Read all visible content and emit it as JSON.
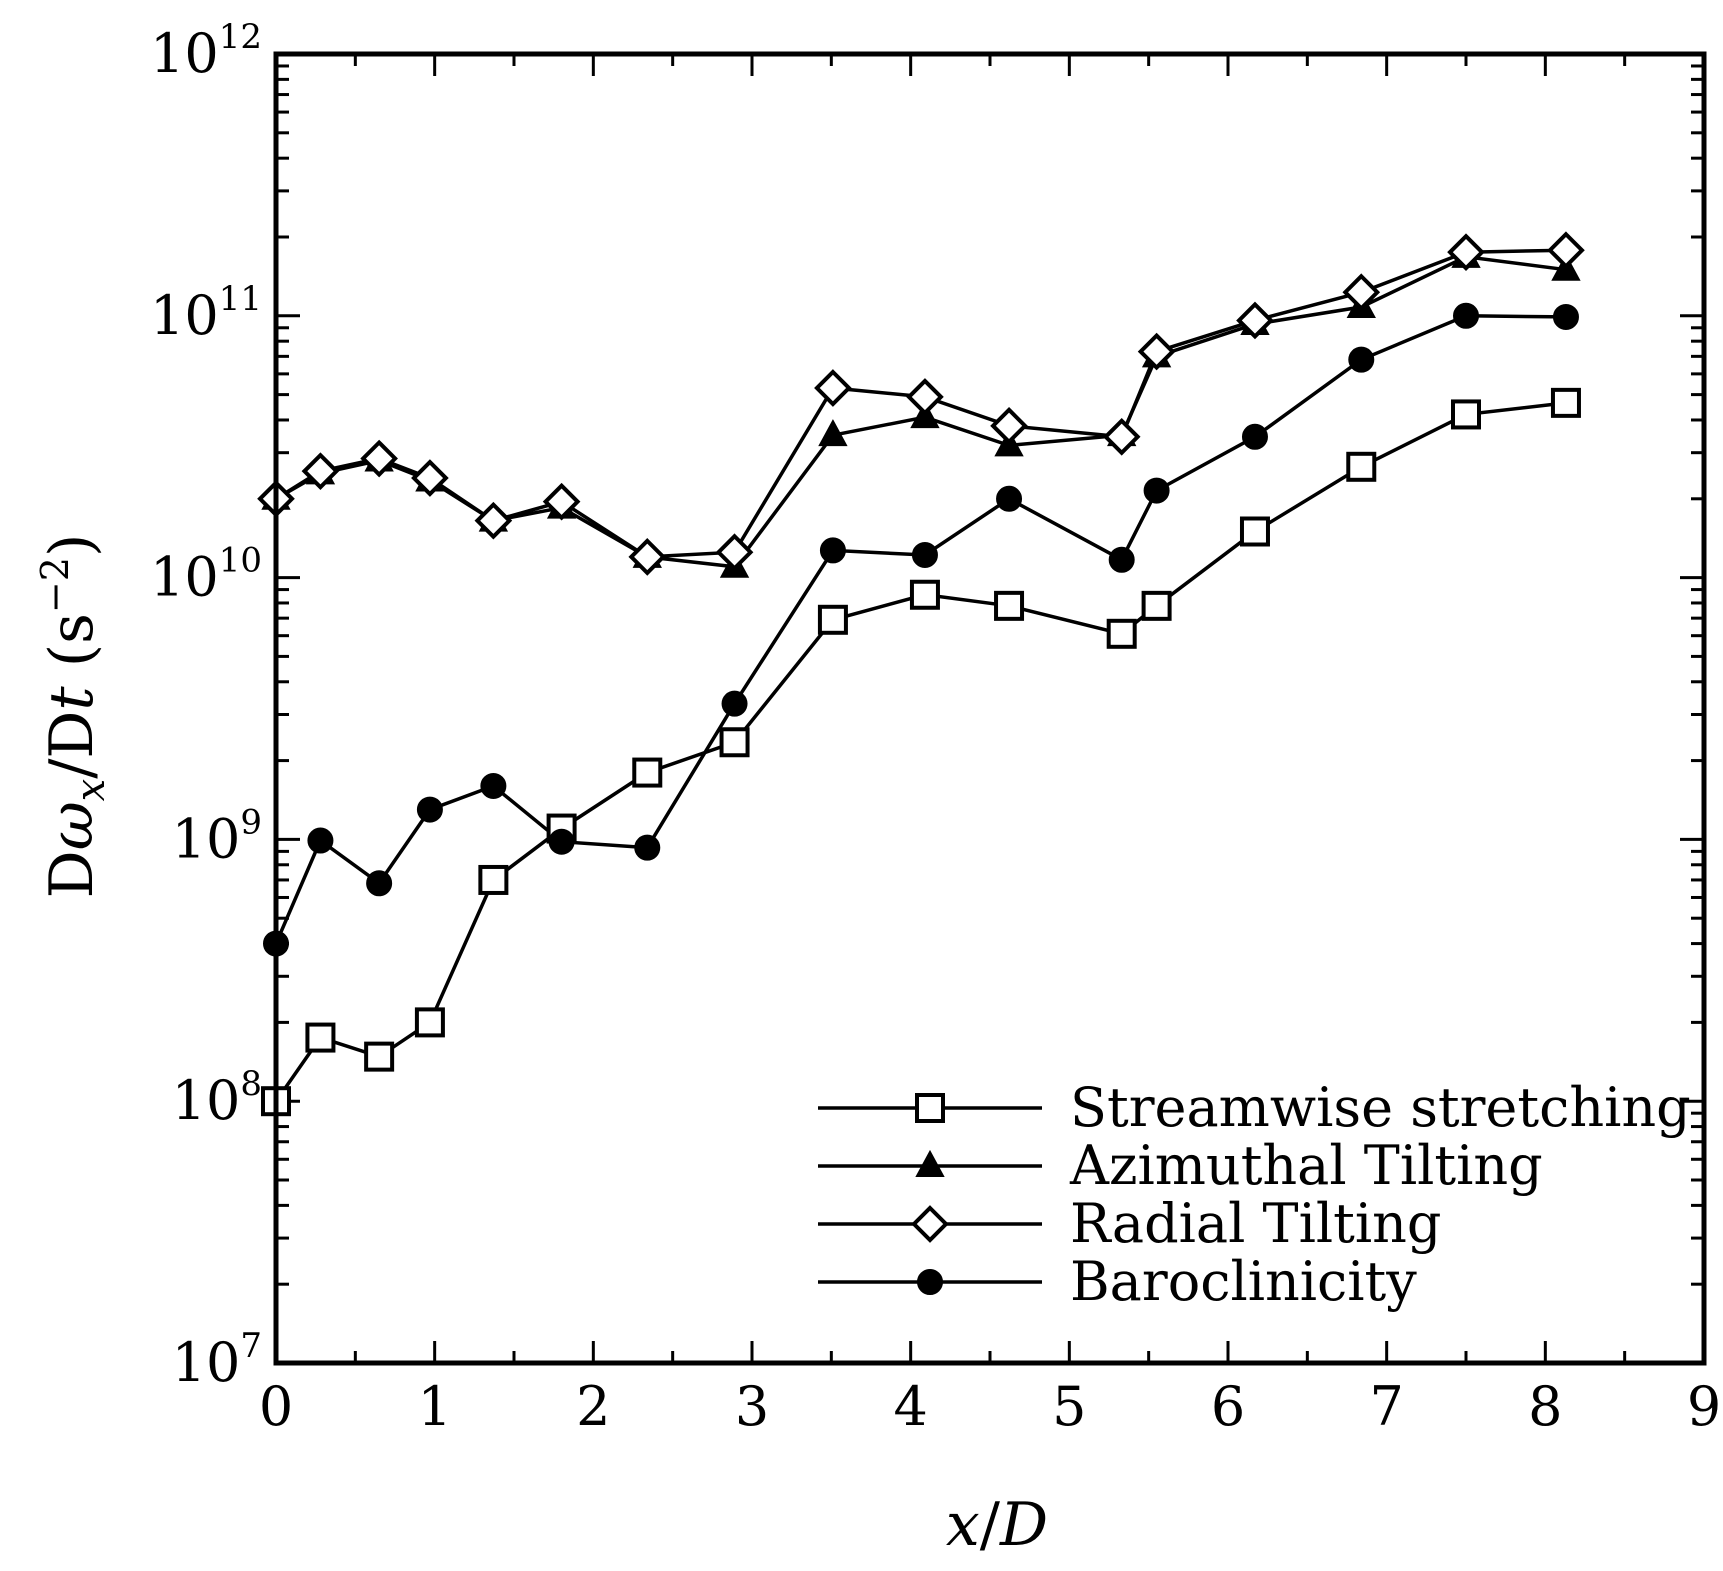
{
  "chart_data": {
    "type": "line",
    "title": "",
    "xlabel": {
      "italic_var": "x",
      "sep": "/",
      "italic_den": "D"
    },
    "ylabel": {
      "prefix": "D",
      "omega": "ω",
      "sub": "x",
      "mid": "/D",
      "t": "t",
      "unit_open": " (s",
      "unit_sup": "−2",
      "unit_close": ")"
    },
    "xlim": [
      0,
      9
    ],
    "ylim": [
      10000000.0,
      1000000000000.0
    ],
    "yscale": "log",
    "grid": false,
    "legend_position": "bottom-right",
    "x_ticks": [
      "0",
      "1",
      "2",
      "3",
      "4",
      "5",
      "6",
      "7",
      "8",
      "9"
    ],
    "y_ticks": [
      {
        "base": "10",
        "exp": "7"
      },
      {
        "base": "10",
        "exp": "8"
      },
      {
        "base": "10",
        "exp": "9"
      },
      {
        "base": "10",
        "exp": "10"
      },
      {
        "base": "10",
        "exp": "11"
      },
      {
        "base": "10",
        "exp": "12"
      }
    ],
    "x": [
      0,
      0.28,
      0.65,
      0.97,
      1.37,
      1.8,
      2.34,
      2.89,
      3.51,
      4.09,
      4.62,
      5.33,
      5.55,
      6.17,
      6.84,
      7.5,
      8.13
    ],
    "series": [
      {
        "name": "Streamwise stretching",
        "marker": "square-open",
        "values": [
          100000000.0,
          175000000.0,
          148000000.0,
          200000000.0,
          700000000.0,
          1100000000.0,
          1800000000.0,
          2350000000.0,
          6900000000.0,
          8600000000.0,
          7800000000.0,
          6100000000.0,
          7800000000.0,
          15000000000.0,
          26500000000.0,
          42000000000.0,
          46500000000.0
        ]
      },
      {
        "name": "Azimuthal Tilting",
        "marker": "triangle-filled",
        "values": [
          20000000000.0,
          25000000000.0,
          28000000000.0,
          23500000000.0,
          16500000000.0,
          18500000000.0,
          12000000000.0,
          11000000000.0,
          35000000000.0,
          41000000000.0,
          32000000000.0,
          35000000000.0,
          70000000000.0,
          93000000000.0,
          108000000000.0,
          168000000000.0,
          150000000000.0
        ]
      },
      {
        "name": "Radial Tilting",
        "marker": "diamond-open",
        "values": [
          20000000000.0,
          25500000000.0,
          28500000000.0,
          24000000000.0,
          16500000000.0,
          19500000000.0,
          12000000000.0,
          12500000000.0,
          53000000000.0,
          49000000000.0,
          38000000000.0,
          34500000000.0,
          73000000000.0,
          96000000000.0,
          123000000000.0,
          175000000000.0,
          178000000000.0
        ]
      },
      {
        "name": "Baroclinicity",
        "marker": "circle-filled",
        "values": [
          400000000.0,
          990000000.0,
          680000000.0,
          1300000000.0,
          1600000000.0,
          980000000.0,
          930000000.0,
          3300000000.0,
          12700000000.0,
          12200000000.0,
          20000000000.0,
          11700000000.0,
          21500000000.0,
          34500000000.0,
          68000000000.0,
          100000000000.0,
          99000000000.0
        ]
      }
    ]
  }
}
